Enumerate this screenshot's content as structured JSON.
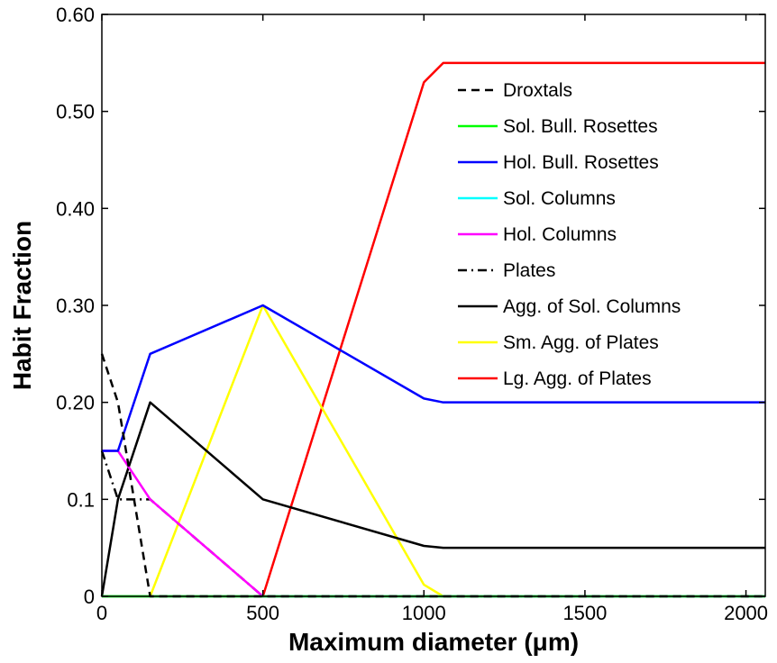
{
  "chart_data": {
    "type": "line",
    "title": "",
    "xlabel": "Maximum diameter (μm)",
    "ylabel": "Habit Fraction",
    "xlim": [
      0,
      2060
    ],
    "ylim": [
      0,
      0.6
    ],
    "xticks": [
      0,
      500,
      1000,
      1500,
      2000
    ],
    "xtick_labels": [
      "0",
      "500",
      "1000",
      "1500",
      "2000"
    ],
    "yticks": [
      0,
      0.1,
      0.2,
      0.3,
      0.4,
      0.5,
      0.6
    ],
    "ytick_labels": [
      "0",
      "0.1",
      "0.20",
      "0.30",
      "0.40",
      "0.50",
      "0.60"
    ],
    "grid": false,
    "legend_position": "top-right",
    "series": [
      {
        "name": "Droxtals",
        "color": "#000000",
        "dash": "dashed",
        "x": [
          0,
          50,
          150,
          2060
        ],
        "y": [
          0.25,
          0.2,
          0,
          0
        ]
      },
      {
        "name": "Sol. Bull. Rosettes",
        "color": "#00ff00",
        "dash": "solid",
        "x": [
          0,
          2060
        ],
        "y": [
          0,
          0
        ]
      },
      {
        "name": "Hol. Bull. Rosettes",
        "color": "#0000ff",
        "dash": "solid",
        "x": [
          0,
          50,
          150,
          500,
          1000,
          1060,
          2060
        ],
        "y": [
          0.15,
          0.15,
          0.25,
          0.3,
          0.204,
          0.2,
          0.2
        ]
      },
      {
        "name": "Sol. Columns",
        "color": "#00ffff",
        "dash": "solid",
        "x": [
          0,
          2060
        ],
        "y": [
          0,
          0
        ]
      },
      {
        "name": "Hol. Columns",
        "color": "#ff00ff",
        "dash": "solid",
        "x": [
          0,
          50,
          150,
          500,
          2060
        ],
        "y": [
          0.15,
          0.15,
          0.1,
          0,
          0
        ]
      },
      {
        "name": "Plates",
        "color": "#000000",
        "dash": "dashdot",
        "x": [
          0,
          50,
          150,
          500,
          2060
        ],
        "y": [
          0.15,
          0.1,
          0.1,
          0,
          0
        ]
      },
      {
        "name": "Agg. of Sol. Columns",
        "color": "#000000",
        "dash": "solid",
        "x": [
          0,
          50,
          150,
          500,
          1000,
          1060,
          2060
        ],
        "y": [
          0,
          0.1,
          0.2,
          0.1,
          0.052,
          0.05,
          0.05
        ]
      },
      {
        "name": "Sm. Agg. of Plates",
        "color": "#ffff00",
        "dash": "solid",
        "x": [
          0,
          150,
          500,
          1000,
          1060,
          2060
        ],
        "y": [
          0,
          0,
          0.3,
          0.012,
          0,
          0
        ]
      },
      {
        "name": "Lg. Agg. of Plates",
        "color": "#ff0000",
        "dash": "solid",
        "x": [
          0,
          500,
          1000,
          1060,
          2060
        ],
        "y": [
          0,
          0,
          0.53,
          0.55,
          0.55
        ]
      }
    ]
  }
}
